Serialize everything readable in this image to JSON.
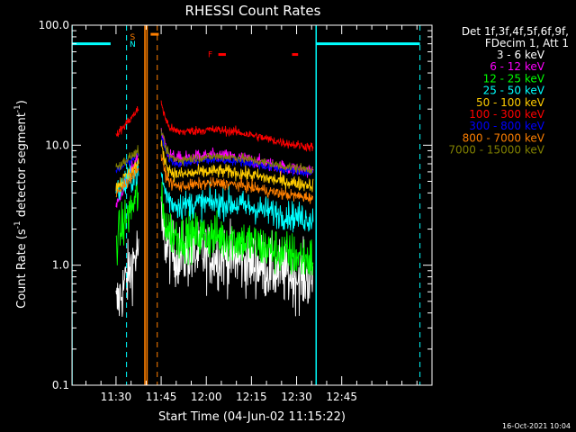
{
  "stamp": "16-Oct-2021 10:04",
  "chart_data": {
    "type": "line",
    "title": "RHESSI Count Rates",
    "xlabel": "Start Time (04-Jun-02 11:15:22)",
    "ylabel_main": "Count Rate (s",
    "ylabel_sup1": "-1",
    "ylabel_mid": " detector segment",
    "ylabel_sup2": "-1",
    "ylabel_end": ")",
    "yscale": "log",
    "ylim": [
      0.1,
      100
    ],
    "xlim_min": [
      675.37,
      795
    ],
    "x_unit": "minutes since 00:00 UT",
    "x_ticks": [
      {
        "t": 690,
        "label": "11:30"
      },
      {
        "t": 705,
        "label": "11:45"
      },
      {
        "t": 720,
        "label": "12:00"
      },
      {
        "t": 735,
        "label": "12:15"
      },
      {
        "t": 750,
        "label": "12:30"
      },
      {
        "t": 765,
        "label": "12:45"
      }
    ],
    "y_ticks": [
      {
        "v": 0.1,
        "label": "0.1"
      },
      {
        "v": 1,
        "label": "1.0"
      },
      {
        "v": 10,
        "label": "10.0"
      },
      {
        "v": 100,
        "label": "100.0"
      }
    ],
    "legend_header": [
      "Det 1f,3f,4f,5f,6f,9f,",
      "FDecim 1, Att 1"
    ],
    "legend_placement": "right",
    "series": [
      {
        "name": "3 - 6 keV",
        "color": "#ffffff",
        "pre": [
          0.45,
          1.4
        ],
        "post": [
          1.1,
          0.75
        ],
        "noise": 0.55
      },
      {
        "name": "6 - 12 keV",
        "color": "#ff00ff",
        "pre": [
          3.2,
          8.5
        ],
        "post": [
          6.8,
          6.0
        ],
        "noise": 0.12
      },
      {
        "name": "12 - 25 keV",
        "color": "#00ff00",
        "pre": [
          1.6,
          4.0
        ],
        "post": [
          1.6,
          1.1
        ],
        "noise": 0.4
      },
      {
        "name": "25 - 50 keV",
        "color": "#00ffff",
        "pre": [
          4.0,
          6.0
        ],
        "post": [
          2.8,
          2.4
        ],
        "noise": 0.25
      },
      {
        "name": "50 - 100 keV",
        "color": "#ffcc00",
        "pre": [
          4.5,
          7.0
        ],
        "post": [
          5.0,
          4.6
        ],
        "noise": 0.12
      },
      {
        "name": "100 - 300 keV",
        "color": "#ff0000",
        "pre": [
          12,
          20
        ],
        "post": [
          11.5,
          9.5
        ],
        "noise": 0.08
      },
      {
        "name": "300 - 800 keV",
        "color": "#0000ff",
        "pre": [
          6.0,
          8.5
        ],
        "post": [
          6.2,
          5.8
        ],
        "noise": 0.08
      },
      {
        "name": "800 - 7000 keV",
        "color": "#ff7f00",
        "pre": [
          3.8,
          6.5
        ],
        "post": [
          4.0,
          3.6
        ],
        "noise": 0.1
      },
      {
        "name": "7000 - 15000 keV",
        "color": "#808000",
        "pre": [
          6.5,
          9.0
        ],
        "post": [
          6.6,
          6.2
        ],
        "noise": 0.08
      }
    ],
    "data_window": {
      "pre": [
        690,
        697.5
      ],
      "post": [
        705,
        755.5
      ]
    },
    "orbit_flags": {
      "level": 70,
      "segments": [
        [
          675.37,
          688.2
        ],
        [
          756.5,
          791
        ]
      ]
    },
    "dashed_cyan_lines": [
      693.5,
      791
    ],
    "solid_cyan_lines": [
      675.37,
      756.5
    ],
    "saa_lines": [
      699.6,
      700.3
    ],
    "dashed_orange_line": 703.7,
    "flags": [
      {
        "text": "S",
        "t": 695.5,
        "color": "#ff7f00"
      },
      {
        "text": "N",
        "t": 695.5,
        "color": "#00ffff"
      },
      {
        "text": "F",
        "t": 722.5,
        "color": "#ff0000"
      }
    ],
    "flag_bars": [
      {
        "t0": 701.5,
        "t1": 704.2,
        "level": 84,
        "color": "#ff7f00"
      },
      {
        "t0": 724.0,
        "t1": 726.5,
        "level": 57,
        "color": "#ff0000"
      },
      {
        "t0": 748.5,
        "t1": 750.5,
        "level": 57,
        "color": "#ff0000"
      }
    ]
  }
}
